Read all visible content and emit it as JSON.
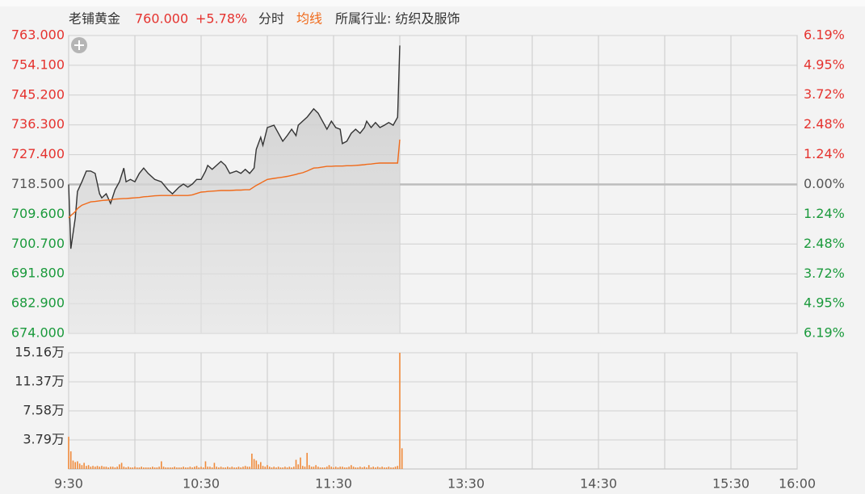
{
  "header": {
    "name": "老铺黄金",
    "price": "760.000",
    "change": "+5.78%",
    "industry": "所属行业: 纺织及服饰"
  },
  "chart_data": [
    {
      "type": "line",
      "up_color": "#e5332f",
      "down_color": "#1b9a3c",
      "flat_color": "#555555",
      "grid": true,
      "ylim": [
        674,
        763
      ],
      "yticks": [
        {
          "value": 763,
          "label": "763.000"
        },
        {
          "value": 754.1,
          "label": "754.100"
        },
        {
          "value": 745.2,
          "label": "745.200"
        },
        {
          "value": 736.3,
          "label": "736.300"
        },
        {
          "value": 727.4,
          "label": "727.400"
        },
        {
          "value": 718.5,
          "label": "718.500"
        },
        {
          "value": 709.6,
          "label": "709.600"
        },
        {
          "value": 700.7,
          "label": "700.700"
        },
        {
          "value": 691.8,
          "label": "691.800"
        },
        {
          "value": 682.9,
          "label": "682.900"
        },
        {
          "value": 674,
          "label": "674.000"
        }
      ],
      "y2lim": [
        -6.19,
        6.19
      ],
      "y2ticks": [
        {
          "value": 6.19,
          "label": "6.19%"
        },
        {
          "value": 4.95,
          "label": "4.95%"
        },
        {
          "value": 3.72,
          "label": "3.72%"
        },
        {
          "value": 2.48,
          "label": "2.48%"
        },
        {
          "value": 1.24,
          "label": "1.24%"
        },
        {
          "value": 0,
          "label": "0.00%"
        },
        {
          "value": -1.24,
          "label": "1.24%"
        },
        {
          "value": -2.48,
          "label": "2.48%"
        },
        {
          "value": -3.72,
          "label": "3.72%"
        },
        {
          "value": -4.95,
          "label": "4.95%"
        },
        {
          "value": -6.19,
          "label": "6.19%"
        }
      ],
      "x": [
        0,
        1,
        3,
        4,
        6,
        8,
        10,
        12,
        14,
        15,
        17,
        19,
        21,
        23,
        25,
        26,
        28,
        30,
        32,
        34,
        36,
        39,
        42,
        45,
        47,
        50,
        52,
        54,
        56,
        58,
        60,
        62,
        63,
        65,
        67,
        69,
        71,
        73,
        76,
        78,
        80,
        82,
        84,
        85,
        87,
        88,
        90,
        93,
        95,
        97,
        99,
        101,
        103,
        104,
        106,
        108,
        111,
        113,
        115,
        117,
        119,
        121,
        123,
        124,
        126,
        128,
        130,
        132,
        134,
        135,
        137,
        139,
        141,
        143,
        145,
        147,
        149,
        150
      ],
      "series": [
        {
          "name": "分时",
          "color": "#333333",
          "values": [
            718.5,
            699.3,
            708.5,
            716.4,
            719.3,
            722.5,
            722.5,
            721.8,
            715.7,
            714.5,
            715.7,
            712.8,
            716.9,
            719.3,
            723.4,
            719.3,
            720,
            719.3,
            721.8,
            723.4,
            721.8,
            720,
            719.3,
            716.9,
            715.7,
            717.7,
            718.6,
            717.7,
            718.6,
            720,
            720,
            722.5,
            724.2,
            723,
            724.2,
            725.4,
            724.2,
            721.8,
            722.5,
            721.8,
            723,
            721.8,
            723.4,
            729,
            732.6,
            730.2,
            735.5,
            736.2,
            733.8,
            731.4,
            733.1,
            735,
            733.1,
            736.2,
            737.4,
            738.6,
            741.1,
            739.8,
            737.4,
            735,
            737.4,
            735.5,
            735,
            730.7,
            731.4,
            733.8,
            735,
            733.8,
            735.5,
            737.4,
            735.5,
            737,
            735.5,
            736.2,
            737,
            736.2,
            738.6,
            760
          ]
        },
        {
          "name": "均线",
          "color": "#f06a1a",
          "values": [
            708.5,
            709.2,
            710.4,
            711.3,
            712.3,
            712.8,
            713.3,
            713.4,
            713.6,
            713.7,
            713.8,
            713.9,
            714.1,
            714.2,
            714.3,
            714.3,
            714.4,
            714.5,
            714.6,
            714.8,
            714.9,
            715.1,
            715.2,
            715.2,
            715.2,
            715.2,
            715.2,
            715.2,
            715.4,
            715.8,
            716.2,
            716.3,
            716.4,
            716.5,
            716.6,
            716.7,
            716.7,
            716.7,
            716.8,
            716.8,
            716.9,
            716.9,
            717.8,
            718.2,
            718.9,
            719.3,
            720,
            720.3,
            720.5,
            720.7,
            720.9,
            721.2,
            721.5,
            721.7,
            722,
            722.5,
            723.4,
            723.5,
            723.7,
            723.9,
            723.9,
            724,
            724,
            724,
            724.1,
            724.1,
            724.2,
            724.3,
            724.4,
            724.5,
            724.6,
            724.8,
            724.9,
            724.9,
            724.9,
            724.9,
            724.9,
            731.9
          ]
        }
      ]
    },
    {
      "type": "bar",
      "color": "#f08a3a",
      "grid": true,
      "xlim": [
        0,
        330
      ],
      "xticks": [
        {
          "value": 0,
          "label": "9:30"
        },
        {
          "value": 30,
          "label": null
        },
        {
          "value": 60,
          "label": "10:30"
        },
        {
          "value": 90,
          "label": null
        },
        {
          "value": 120,
          "label": "11:30"
        },
        {
          "value": 150,
          "label": null
        },
        {
          "value": 180,
          "label": "13:30"
        },
        {
          "value": 210,
          "label": null
        },
        {
          "value": 240,
          "label": "14:30"
        },
        {
          "value": 270,
          "label": null
        },
        {
          "value": 300,
          "label": "15:30"
        },
        {
          "value": 330,
          "label": "16:00"
        }
      ],
      "ylim": [
        0,
        15.16
      ],
      "yticks": [
        {
          "value": 3.79,
          "label": "3.79万"
        },
        {
          "value": 7.58,
          "label": "7.58万"
        },
        {
          "value": 11.37,
          "label": "11.37万"
        },
        {
          "value": 15.16,
          "label": "15.16万"
        }
      ],
      "x": [
        0,
        1,
        2,
        3,
        4,
        5,
        6,
        7,
        8,
        9,
        10,
        11,
        12,
        13,
        14,
        15,
        16,
        17,
        18,
        19,
        20,
        21,
        22,
        23,
        24,
        25,
        26,
        27,
        28,
        29,
        30,
        31,
        32,
        33,
        34,
        35,
        36,
        37,
        38,
        39,
        40,
        41,
        42,
        43,
        44,
        45,
        46,
        47,
        48,
        49,
        50,
        51,
        52,
        53,
        54,
        55,
        56,
        57,
        58,
        59,
        60,
        61,
        62,
        63,
        64,
        65,
        66,
        67,
        68,
        69,
        70,
        71,
        72,
        73,
        74,
        75,
        76,
        77,
        78,
        79,
        80,
        81,
        82,
        83,
        84,
        85,
        86,
        87,
        88,
        89,
        90,
        91,
        92,
        93,
        94,
        95,
        96,
        97,
        98,
        99,
        100,
        101,
        102,
        103,
        104,
        105,
        106,
        107,
        108,
        109,
        110,
        111,
        112,
        113,
        114,
        115,
        116,
        117,
        118,
        119,
        120,
        121,
        122,
        123,
        124,
        125,
        126,
        127,
        128,
        129,
        130,
        131,
        132,
        133,
        134,
        135,
        136,
        137,
        138,
        139,
        140,
        141,
        142,
        143,
        144,
        145,
        146,
        147,
        148,
        149,
        150,
        151
      ],
      "values": [
        4.2,
        2.3,
        1.1,
        0.9,
        1.0,
        0.7,
        0.5,
        0.8,
        0.4,
        0.5,
        0.3,
        0.4,
        0.3,
        0.4,
        0.3,
        0.4,
        0.3,
        0.3,
        0.2,
        0.3,
        0.3,
        0.2,
        0.3,
        0.6,
        0.8,
        0.3,
        0.2,
        0.3,
        0.2,
        0.2,
        0.3,
        0.2,
        0.2,
        0.3,
        0.2,
        0.2,
        0.2,
        0.2,
        0.3,
        0.2,
        0.2,
        0.3,
        1.0,
        0.3,
        0.2,
        0.2,
        0.2,
        0.2,
        0.3,
        0.2,
        0.2,
        0.2,
        0.3,
        0.2,
        0.2,
        0.3,
        0.2,
        0.3,
        0.4,
        0.2,
        0.3,
        0.2,
        1.0,
        0.3,
        0.3,
        0.2,
        0.8,
        0.3,
        0.2,
        0.3,
        0.2,
        0.2,
        0.3,
        0.2,
        0.3,
        0.2,
        0.2,
        0.3,
        0.2,
        0.3,
        0.4,
        0.3,
        0.3,
        2.0,
        1.3,
        1.1,
        0.6,
        0.9,
        0.4,
        0.3,
        0.5,
        0.3,
        0.2,
        0.3,
        0.2,
        0.3,
        0.2,
        0.2,
        0.3,
        0.2,
        0.3,
        0.2,
        0.3,
        1.2,
        0.6,
        1.5,
        0.4,
        0.3,
        2.1,
        0.5,
        0.3,
        0.3,
        0.5,
        0.3,
        0.2,
        0.2,
        0.2,
        0.3,
        0.5,
        0.3,
        0.2,
        0.3,
        0.2,
        0.3,
        0.3,
        0.2,
        0.2,
        0.3,
        0.5,
        0.3,
        0.2,
        0.2,
        0.3,
        0.2,
        0.3,
        0.2,
        0.5,
        0.2,
        0.3,
        0.2,
        0.3,
        0.2,
        0.3,
        0.2,
        0.2,
        0.3,
        0.2,
        0.2,
        0.3,
        0.4,
        15.16,
        2.7
      ]
    }
  ]
}
